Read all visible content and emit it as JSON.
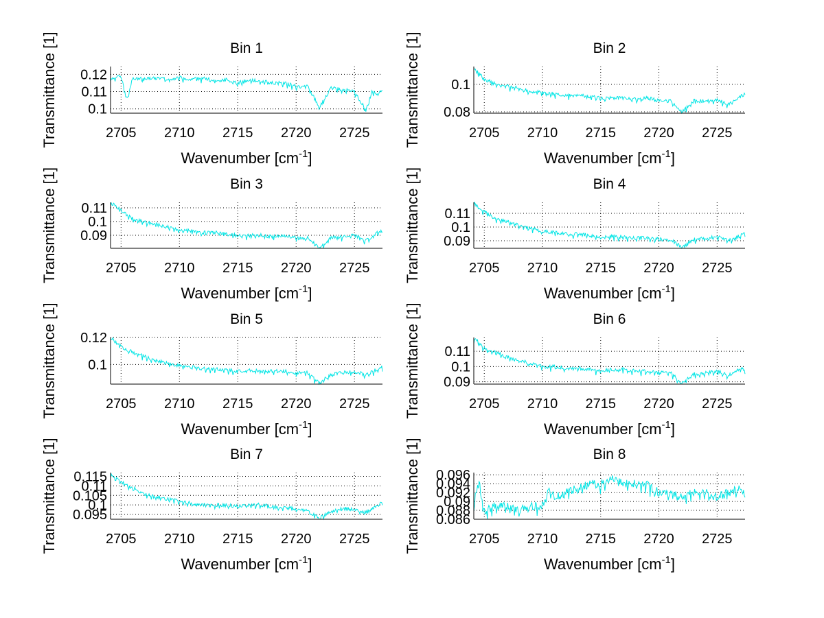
{
  "figure": {
    "line_color": "#00e5e5",
    "grid": "dotted"
  },
  "chart_data": [
    {
      "type": "line",
      "title": "Bin 1",
      "xlabel": "Wavenumber [cm⁻¹]",
      "ylabel": "Transmittance [1]",
      "xlim": [
        2704.1,
        2727.4
      ],
      "ylim": [
        0.0975,
        0.1245
      ],
      "xticks": [
        2705,
        2710,
        2715,
        2720,
        2725
      ],
      "yticks": [
        0.1,
        0.11,
        0.12
      ],
      "ytick_labels": [
        "0.1",
        "0.11",
        "0.12"
      ],
      "series": [
        {
          "name": "Bin 1",
          "x": [
            2704.2,
            2705,
            2705.5,
            2706,
            2707,
            2708,
            2709,
            2710,
            2711,
            2712,
            2713,
            2714,
            2715,
            2716,
            2717,
            2718,
            2719,
            2720,
            2721,
            2722,
            2723,
            2724,
            2725,
            2726,
            2726.5,
            2727,
            2727.4
          ],
          "y": [
            0.118,
            0.119,
            0.105,
            0.118,
            0.117,
            0.118,
            0.117,
            0.118,
            0.117,
            0.118,
            0.116,
            0.117,
            0.115,
            0.117,
            0.116,
            0.115,
            0.115,
            0.113,
            0.113,
            0.101,
            0.112,
            0.111,
            0.11,
            0.099,
            0.11,
            0.108,
            0.111
          ]
        }
      ]
    },
    {
      "type": "line",
      "title": "Bin 2",
      "xlabel": "Wavenumber [cm⁻¹]",
      "ylabel": "Transmittance [1]",
      "xlim": [
        2704.1,
        2727.4
      ],
      "ylim": [
        0.079,
        0.113
      ],
      "xticks": [
        2705,
        2710,
        2715,
        2720,
        2725
      ],
      "yticks": [
        0.08,
        0.1
      ],
      "ytick_labels": [
        "0.08",
        "0.1"
      ],
      "series": [
        {
          "name": "Bin 2",
          "x": [
            2704.1,
            2704.5,
            2705,
            2706,
            2707,
            2708,
            2709,
            2710,
            2711,
            2712,
            2713,
            2714,
            2715,
            2716,
            2717,
            2718,
            2719,
            2720,
            2721,
            2722,
            2723,
            2724,
            2725,
            2726,
            2727,
            2727.4
          ],
          "y": [
            0.112,
            0.108,
            0.104,
            0.1,
            0.099,
            0.097,
            0.095,
            0.094,
            0.093,
            0.092,
            0.092,
            0.091,
            0.09,
            0.09,
            0.09,
            0.089,
            0.09,
            0.088,
            0.088,
            0.08,
            0.088,
            0.088,
            0.089,
            0.085,
            0.091,
            0.093
          ]
        }
      ]
    },
    {
      "type": "line",
      "title": "Bin 3",
      "xlabel": "Wavenumber [cm⁻¹]",
      "ylabel": "Transmittance [1]",
      "xlim": [
        2704.1,
        2727.4
      ],
      "ylim": [
        0.0805,
        0.114
      ],
      "xticks": [
        2705,
        2710,
        2715,
        2720,
        2725
      ],
      "yticks": [
        0.09,
        0.1,
        0.11
      ],
      "ytick_labels": [
        "0.09",
        "0.1",
        "0.11"
      ],
      "series": [
        {
          "name": "Bin 3",
          "x": [
            2704.1,
            2704.5,
            2705,
            2706,
            2707,
            2708,
            2709,
            2710,
            2711,
            2712,
            2713,
            2714,
            2715,
            2716,
            2717,
            2718,
            2719,
            2720,
            2721,
            2722,
            2723,
            2724,
            2725,
            2726,
            2727,
            2727.4
          ],
          "y": [
            0.113,
            0.112,
            0.108,
            0.102,
            0.1,
            0.098,
            0.096,
            0.094,
            0.093,
            0.092,
            0.092,
            0.091,
            0.09,
            0.09,
            0.09,
            0.089,
            0.09,
            0.088,
            0.088,
            0.081,
            0.088,
            0.089,
            0.09,
            0.086,
            0.092,
            0.093
          ]
        }
      ]
    },
    {
      "type": "line",
      "title": "Bin 4",
      "xlabel": "Wavenumber [cm⁻¹]",
      "ylabel": "Transmittance [1]",
      "xlim": [
        2704.1,
        2727.4
      ],
      "ylim": [
        0.0845,
        0.118
      ],
      "xticks": [
        2705,
        2710,
        2715,
        2720,
        2725
      ],
      "yticks": [
        0.09,
        0.1,
        0.11
      ],
      "ytick_labels": [
        "0.09",
        "0.1",
        "0.11"
      ],
      "series": [
        {
          "name": "Bin 4",
          "x": [
            2704.1,
            2704.5,
            2705,
            2706,
            2707,
            2708,
            2709,
            2710,
            2711,
            2712,
            2713,
            2714,
            2715,
            2716,
            2717,
            2718,
            2719,
            2720,
            2721,
            2722,
            2723,
            2724,
            2725,
            2726,
            2727,
            2727.4
          ],
          "y": [
            0.117,
            0.115,
            0.111,
            0.106,
            0.104,
            0.101,
            0.099,
            0.097,
            0.096,
            0.095,
            0.095,
            0.094,
            0.093,
            0.093,
            0.093,
            0.092,
            0.092,
            0.091,
            0.091,
            0.085,
            0.091,
            0.092,
            0.093,
            0.09,
            0.094,
            0.096
          ]
        }
      ]
    },
    {
      "type": "line",
      "title": "Bin 5",
      "xlabel": "Wavenumber [cm⁻¹]",
      "ylabel": "Transmittance [1]",
      "xlim": [
        2704.1,
        2727.4
      ],
      "ylim": [
        0.0855,
        0.12
      ],
      "xticks": [
        2705,
        2710,
        2715,
        2720,
        2725
      ],
      "yticks": [
        0.1,
        0.12
      ],
      "ytick_labels": [
        "0.1",
        "0.12"
      ],
      "series": [
        {
          "name": "Bin 5",
          "x": [
            2704.1,
            2704.5,
            2705,
            2706,
            2707,
            2708,
            2709,
            2710,
            2711,
            2712,
            2713,
            2714,
            2715,
            2716,
            2717,
            2718,
            2719,
            2720,
            2721,
            2722,
            2723,
            2724,
            2725,
            2726,
            2727,
            2727.4
          ],
          "y": [
            0.12,
            0.117,
            0.113,
            0.109,
            0.106,
            0.103,
            0.101,
            0.099,
            0.098,
            0.097,
            0.097,
            0.096,
            0.095,
            0.096,
            0.095,
            0.095,
            0.095,
            0.094,
            0.094,
            0.086,
            0.093,
            0.094,
            0.095,
            0.092,
            0.097,
            0.098
          ]
        }
      ]
    },
    {
      "type": "line",
      "title": "Bin 6",
      "xlabel": "Wavenumber [cm⁻¹]",
      "ylabel": "Transmittance [1]",
      "xlim": [
        2704.1,
        2727.4
      ],
      "ylim": [
        0.0885,
        0.119
      ],
      "xticks": [
        2705,
        2710,
        2715,
        2720,
        2725
      ],
      "yticks": [
        0.09,
        0.1,
        0.11
      ],
      "ytick_labels": [
        "0.09",
        "0.1",
        "0.11"
      ],
      "series": [
        {
          "name": "Bin 6",
          "x": [
            2704.1,
            2704.5,
            2705,
            2706,
            2707,
            2708,
            2709,
            2710,
            2711,
            2712,
            2713,
            2714,
            2715,
            2716,
            2717,
            2718,
            2719,
            2720,
            2721,
            2722,
            2723,
            2724,
            2725,
            2726,
            2727,
            2727.4
          ],
          "y": [
            0.118,
            0.116,
            0.112,
            0.109,
            0.106,
            0.104,
            0.102,
            0.1,
            0.1,
            0.099,
            0.099,
            0.098,
            0.097,
            0.098,
            0.098,
            0.097,
            0.097,
            0.096,
            0.096,
            0.089,
            0.095,
            0.096,
            0.097,
            0.094,
            0.099,
            0.098
          ]
        }
      ]
    },
    {
      "type": "line",
      "title": "Bin 7",
      "xlabel": "Wavenumber [cm⁻¹]",
      "ylabel": "Transmittance [1]",
      "xlim": [
        2704.1,
        2727.4
      ],
      "ylim": [
        0.0925,
        0.117
      ],
      "xticks": [
        2705,
        2710,
        2715,
        2720,
        2725
      ],
      "yticks": [
        0.095,
        0.1,
        0.105,
        0.11,
        0.115
      ],
      "ytick_labels": [
        "0.095",
        "0.1",
        "0.105",
        "0.11",
        "0.115"
      ],
      "series": [
        {
          "name": "Bin 7",
          "x": [
            2704.1,
            2704.5,
            2705,
            2706,
            2707,
            2708,
            2709,
            2710,
            2711,
            2712,
            2713,
            2714,
            2715,
            2716,
            2717,
            2718,
            2719,
            2720,
            2721,
            2722,
            2723,
            2724,
            2725,
            2726,
            2727,
            2727.4
          ],
          "y": [
            0.116,
            0.114,
            0.112,
            0.109,
            0.106,
            0.104,
            0.103,
            0.102,
            0.101,
            0.1,
            0.1,
            0.1,
            0.099,
            0.1,
            0.1,
            0.099,
            0.099,
            0.098,
            0.097,
            0.093,
            0.097,
            0.098,
            0.098,
            0.096,
            0.1,
            0.101
          ]
        }
      ]
    },
    {
      "type": "line",
      "title": "Bin 8",
      "xlabel": "Wavenumber [cm⁻¹]",
      "ylabel": "Transmittance [1]",
      "xlim": [
        2704.1,
        2727.4
      ],
      "ylim": [
        0.086,
        0.0965
      ],
      "xticks": [
        2705,
        2710,
        2715,
        2720,
        2725
      ],
      "yticks": [
        0.086,
        0.088,
        0.09,
        0.092,
        0.094,
        0.096
      ],
      "ytick_labels": [
        "0.086",
        "0.088",
        "0.09",
        "0.092",
        "0.094",
        "0.096"
      ],
      "series": [
        {
          "name": "Bin 8",
          "x": [
            2704.1,
            2704.5,
            2705,
            2706,
            2707,
            2708,
            2709,
            2710,
            2710.5,
            2711,
            2712,
            2713,
            2714,
            2715,
            2716,
            2717,
            2718,
            2719,
            2720,
            2721,
            2722,
            2723,
            2724,
            2725,
            2726,
            2727,
            2727.4
          ],
          "y": [
            0.089,
            0.095,
            0.088,
            0.089,
            0.089,
            0.088,
            0.089,
            0.089,
            0.093,
            0.091,
            0.092,
            0.093,
            0.094,
            0.094,
            0.095,
            0.094,
            0.094,
            0.094,
            0.092,
            0.092,
            0.091,
            0.092,
            0.092,
            0.091,
            0.092,
            0.093,
            0.092
          ]
        }
      ]
    }
  ]
}
